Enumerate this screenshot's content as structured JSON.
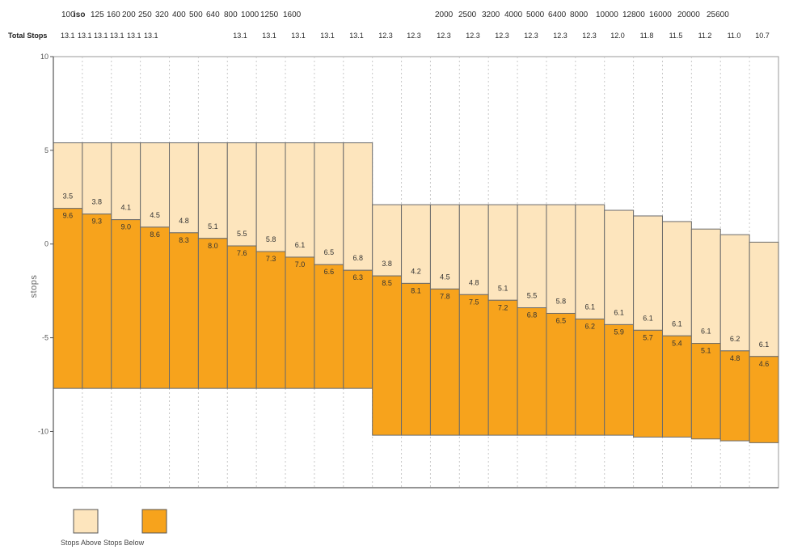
{
  "chart_data": {
    "type": "bar",
    "subtype": "floating stacked bar (stops above / below middle grey)",
    "title": "",
    "xlabel": "",
    "ylabel": "stops",
    "ylim": [
      -13,
      10
    ],
    "yticks": [
      10,
      5,
      0,
      -5,
      -10
    ],
    "grid": "vertical dotted lines at category boundaries",
    "iso_labels": [
      "100",
      "iso",
      "125",
      "160",
      "200",
      "250",
      "320",
      "400",
      "500",
      "640",
      "800",
      "1000",
      "1250",
      "1600",
      "2000",
      "2500",
      "3200",
      "4000",
      "5000",
      "6400",
      "8000",
      "10000",
      "12800",
      "16000",
      "20000",
      "25600"
    ],
    "total_stops_title": "Total Stops",
    "total_stops_labels": [
      "13.1",
      "13.1",
      "13.1",
      "13.1",
      "13.1",
      "13.1",
      "13.1",
      "13.1",
      "13.1",
      "13.1",
      "13.1",
      "12.3",
      "12.3",
      "12.3",
      "12.3",
      "12.3",
      "12.3",
      "12.3",
      "12.3",
      "12.0",
      "11.8",
      "11.5",
      "11.2",
      "11.0",
      "10.7"
    ],
    "categories": [
      "1",
      "2",
      "3",
      "4",
      "5",
      "6",
      "7",
      "8",
      "9",
      "10",
      "11",
      "12",
      "13",
      "14",
      "15",
      "16",
      "17",
      "18",
      "19",
      "20",
      "21",
      "22",
      "23",
      "24",
      "25"
    ],
    "series": [
      {
        "name": "Stops Above",
        "color": "#fde5bd",
        "values": [
          3.5,
          3.8,
          4.1,
          4.5,
          4.8,
          5.1,
          5.5,
          5.8,
          6.1,
          6.5,
          6.8,
          3.8,
          4.2,
          4.5,
          4.8,
          5.1,
          5.5,
          5.8,
          6.1,
          6.1,
          6.1,
          6.1,
          6.1,
          6.2,
          6.1
        ]
      },
      {
        "name": "Stops Below",
        "color": "#f7a31c",
        "values": [
          9.6,
          9.3,
          9.0,
          8.6,
          8.3,
          8.0,
          7.6,
          7.3,
          7.0,
          6.6,
          6.3,
          8.5,
          8.1,
          7.8,
          7.5,
          7.2,
          6.8,
          6.5,
          6.2,
          5.9,
          5.7,
          5.4,
          5.1,
          4.8,
          4.6
        ]
      }
    ],
    "top_values": [
      5.4,
      5.4,
      5.4,
      5.4,
      5.4,
      5.4,
      5.4,
      5.4,
      5.4,
      5.4,
      5.4,
      2.1,
      2.1,
      2.1,
      2.1,
      2.1,
      2.1,
      2.1,
      2.1,
      1.8,
      1.5,
      1.2,
      0.8,
      0.5,
      0.1
    ],
    "legend_position": "bottom-left",
    "legend": [
      "Stops Above",
      "Stops Below"
    ],
    "legend_text": "Stops Above Stops Below"
  }
}
